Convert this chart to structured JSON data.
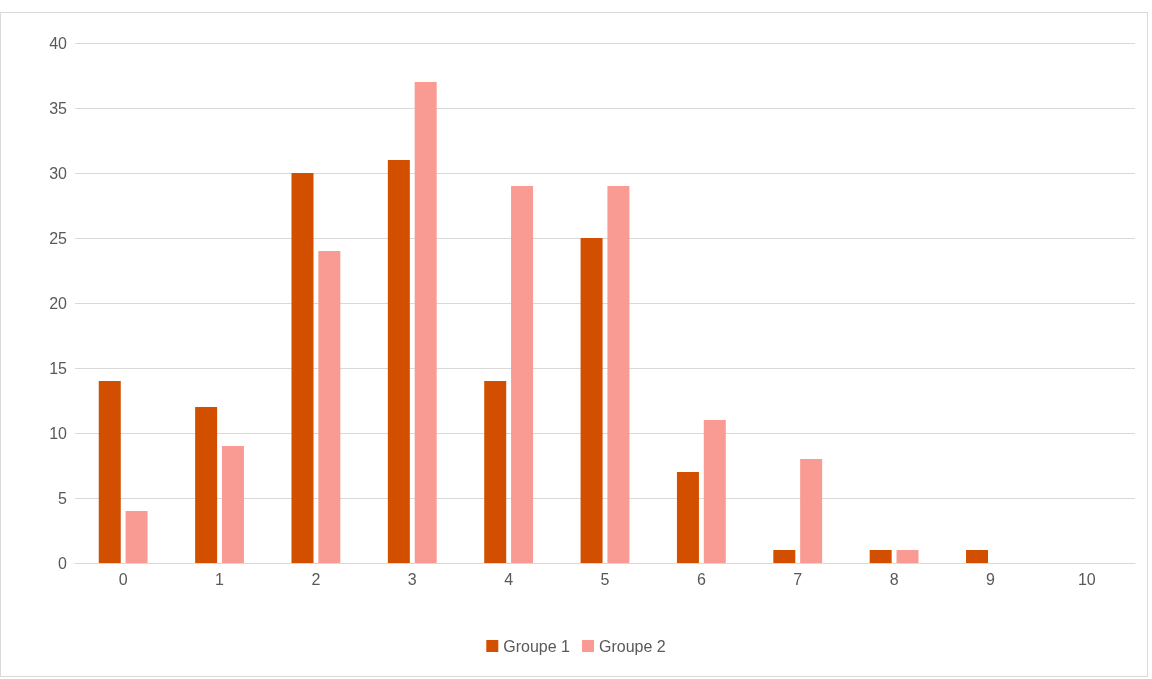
{
  "chart_data": {
    "type": "bar",
    "categories": [
      "0",
      "1",
      "2",
      "3",
      "4",
      "5",
      "6",
      "7",
      "8",
      "9",
      "10"
    ],
    "series": [
      {
        "name": "Groupe 1",
        "color": "#d24f00",
        "values": [
          14,
          12,
          30,
          31,
          14,
          25,
          7,
          1,
          1,
          1,
          0
        ]
      },
      {
        "name": "Groupe 2",
        "color": "#f99b93",
        "values": [
          4,
          9,
          24,
          37,
          29,
          29,
          11,
          8,
          1,
          0,
          0
        ]
      }
    ],
    "ylim": [
      0,
      40
    ],
    "yticks": [
      0,
      5,
      10,
      15,
      20,
      25,
      30,
      35,
      40
    ],
    "grid": "y",
    "legend": "bottom"
  }
}
